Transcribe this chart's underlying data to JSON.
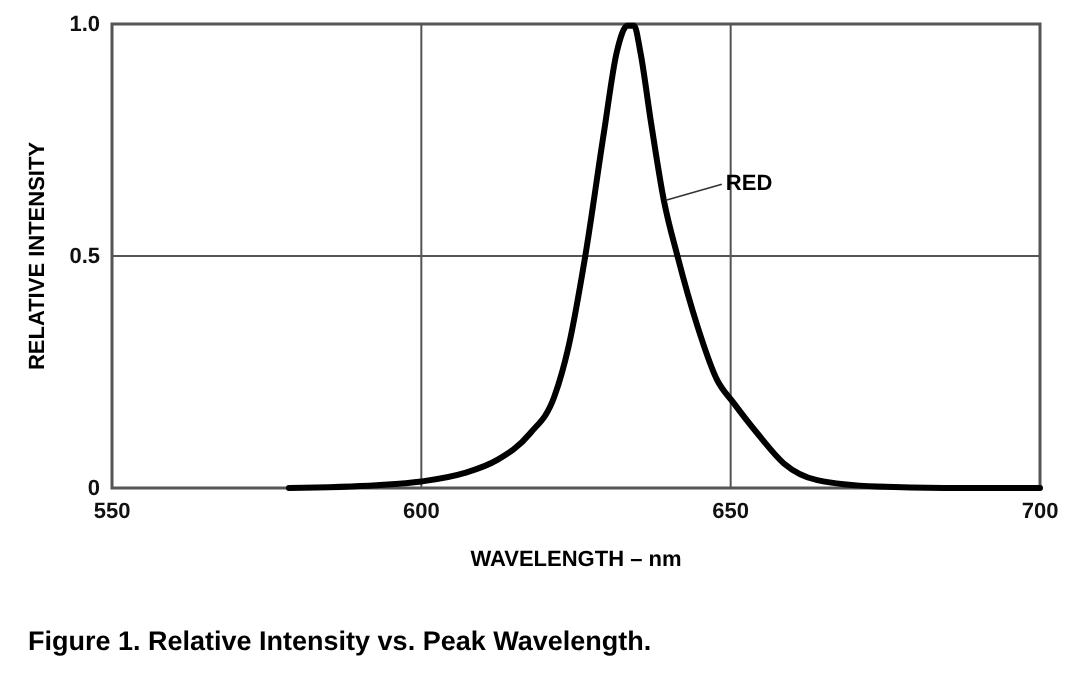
{
  "chart_data": {
    "type": "line",
    "xlabel": "WAVELENGTH – nm",
    "ylabel": "RELATIVE INTENSITY",
    "annotations": [
      "Figure 1. Relative Intensity vs. Peak Wavelength."
    ],
    "xlim": [
      550,
      700
    ],
    "xticks": [
      550,
      600,
      650,
      700
    ],
    "ylim": [
      0,
      1
    ],
    "yticks": [
      0,
      0.5,
      {
        "value": 1,
        "label": "1.0"
      }
    ],
    "grid": true,
    "legend": false,
    "line_style": "solid",
    "marker": "none",
    "series": [
      {
        "name": "RED",
        "color": "#000000",
        "x": [
          578.6,
          592.8,
          600,
          606.9,
          612.2,
          617.6,
          621.5,
          623.8,
          626.5,
          629.5,
          631.6,
          633.3,
          634.4,
          635.4,
          637.1,
          639.2,
          641.4,
          644.6,
          647.8,
          650.5,
          654.3,
          658.6,
          664,
          673.7,
          684.5,
          700
        ],
        "values": [
          0,
          0.006,
          0.014,
          0.032,
          0.06,
          0.118,
          0.197,
          0.305,
          0.5,
          0.765,
          0.94,
          0.996,
          0.996,
          0.94,
          0.79,
          0.62,
          0.5,
          0.35,
          0.233,
          0.183,
          0.118,
          0.053,
          0.017,
          0.003,
          0,
          0
        ]
      }
    ]
  }
}
